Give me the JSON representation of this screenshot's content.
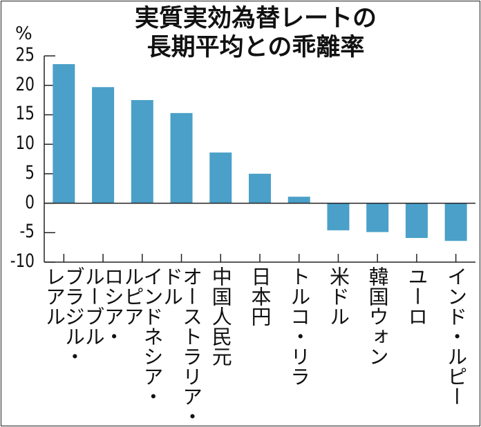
{
  "chart_data": {
    "type": "bar",
    "title": "実質実効為替レートの\n長期平均との乖離率",
    "title_lines": [
      "実質実効為替レートの",
      "長期平均との乖離率"
    ],
    "ylabel": "%",
    "xlabel": "",
    "ylim": [
      -10,
      25
    ],
    "yticks": [
      "25",
      "20",
      "15",
      "10",
      "5",
      "0",
      "-5",
      "-10"
    ],
    "categories": [
      "ブラジル・\nレアル",
      "ロシア・\nルーブル",
      "インドネシア・\nルピア",
      "オーストラリア・\nドル",
      "中国人民元",
      "日本円",
      "トルコ・リラ",
      "米ドル",
      "韓国ウォン",
      "ユーロ",
      "インド・ルピー"
    ],
    "values": [
      23.6,
      19.7,
      17.5,
      15.3,
      8.6,
      5.0,
      1.1,
      -4.6,
      -4.9,
      -5.9,
      -6.4
    ],
    "bar_color": "#4aa0c8",
    "grid": false,
    "legend": "none"
  }
}
